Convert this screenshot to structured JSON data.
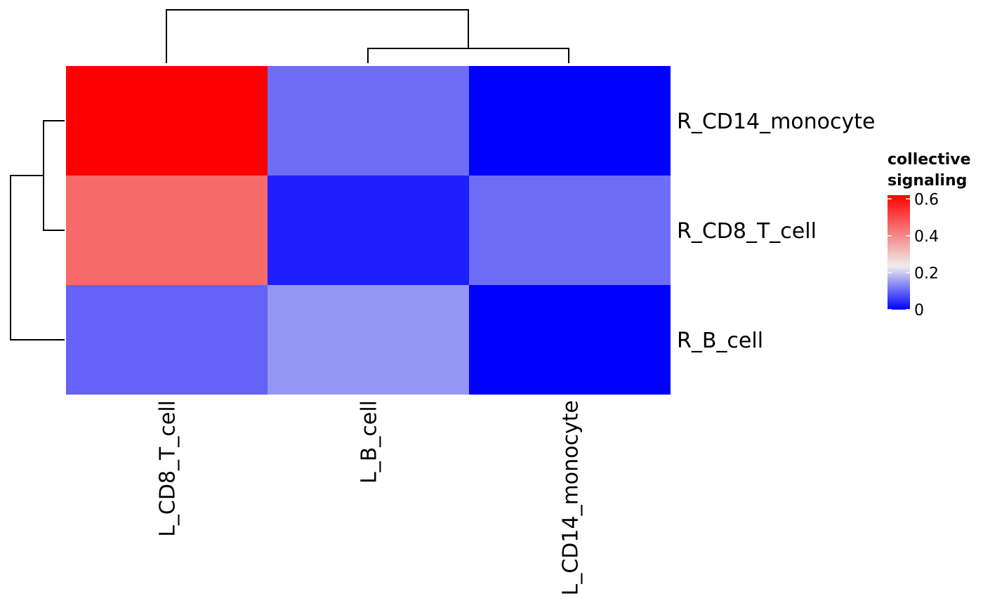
{
  "chart_data": {
    "type": "heatmap",
    "columns": [
      "L_CD8_T_cell",
      "L_B_cell",
      "L_CD14_monocyte"
    ],
    "rows": [
      "R_CD14_monocyte",
      "R_CD8_T_cell",
      "R_B_cell"
    ],
    "values": [
      [
        0.62,
        0.11,
        0.0
      ],
      [
        0.45,
        0.03,
        0.11
      ],
      [
        0.1,
        0.15,
        0.0
      ]
    ],
    "legend": {
      "title_lines": [
        "collective",
        "signaling"
      ],
      "ticks": [
        "0.6",
        "0.4",
        "0.2",
        "0"
      ],
      "tick_values": [
        0.6,
        0.4,
        0.2,
        0.0
      ],
      "range": [
        0.0,
        0.62
      ],
      "colors": [
        "#0000ff",
        "#eeeeee",
        "#ff0000"
      ],
      "color_mid_value": 0.24
    },
    "row_dendrogram": true,
    "column_dendrogram": true
  }
}
